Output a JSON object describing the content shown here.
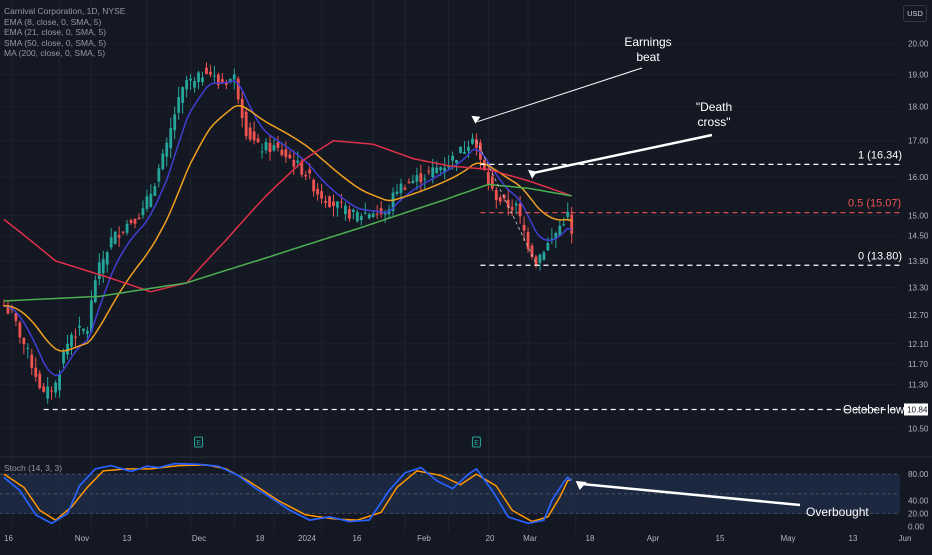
{
  "header": {
    "legend": [
      "Carnival Corporation, 1D, NYSE",
      "EMA (8, close, 0, SMA, 5)",
      "EMA (21, close, 0, SMA, 5)",
      "SMA (50, close, 0, SMA, 5)",
      "MA (200, close, 0, SMA, 5)"
    ],
    "currency": "USD"
  },
  "stoch_legend": "Stoch (14, 3, 3)",
  "colors": {
    "background": "#141823",
    "up": "#26a69a",
    "down": "#ef5350",
    "ema8": "#3f3fd4",
    "ema21": "#f0a020",
    "sma50": "#e0304a",
    "ma200": "#4caf50",
    "stoch_k": "#2962ff",
    "stoch_d": "#ff9800",
    "fib_red": "#ef5350"
  },
  "chart_data": [
    {
      "type": "candlestick",
      "title": "Carnival Corporation, 1D, NYSE",
      "x_ticks": [
        "16",
        "Nov",
        "13",
        "Dec",
        "18",
        "2024",
        "16",
        "Feb",
        "20",
        "Mar",
        "18",
        "Apr",
        "15",
        "May",
        "13",
        "Jun"
      ],
      "y_ticks": [
        20.0,
        19.0,
        18.0,
        17.0,
        16.0,
        15.0,
        14.5,
        13.9,
        13.3,
        12.7,
        12.1,
        11.7,
        11.3,
        10.5
      ],
      "ylim": [
        10.3,
        20.6
      ],
      "y_scale": "log",
      "anchor_closes": [
        [
          "2023-10-12",
          12.9
        ],
        [
          "2023-10-16",
          12.7
        ],
        [
          "2023-10-20",
          11.9
        ],
        [
          "2023-10-26",
          11.1
        ],
        [
          "2023-10-31",
          11.3
        ],
        [
          "2023-11-02",
          11.9
        ],
        [
          "2023-11-06",
          12.3
        ],
        [
          "2023-11-10",
          12.4
        ],
        [
          "2023-11-14",
          13.5
        ],
        [
          "2023-11-20",
          14.4
        ],
        [
          "2023-11-24",
          14.8
        ],
        [
          "2023-11-30",
          15.1
        ],
        [
          "2023-12-04",
          15.6
        ],
        [
          "2023-12-08",
          16.8
        ],
        [
          "2023-12-12",
          17.8
        ],
        [
          "2023-12-15",
          18.8
        ],
        [
          "2023-12-19",
          18.7
        ],
        [
          "2023-12-22",
          19.2
        ],
        [
          "2023-12-27",
          18.7
        ],
        [
          "2024-01-02",
          18.9
        ],
        [
          "2024-01-05",
          17.3
        ],
        [
          "2024-01-10",
          16.8
        ],
        [
          "2024-01-16",
          16.8
        ],
        [
          "2024-01-22",
          16.5
        ],
        [
          "2024-01-26",
          16.1
        ],
        [
          "2024-01-31",
          15.6
        ],
        [
          "2024-02-06",
          15.3
        ],
        [
          "2024-02-13",
          15.0
        ],
        [
          "2024-02-20",
          15.1
        ],
        [
          "2024-02-23",
          15.0
        ],
        [
          "2024-02-28",
          15.7
        ],
        [
          "2024-03-05",
          15.9
        ],
        [
          "2024-03-11",
          16.1
        ],
        [
          "2024-03-18",
          16.4
        ],
        [
          "2024-03-22",
          16.8
        ],
        [
          "2024-03-26",
          17.2
        ],
        [
          "2024-03-28",
          16.4
        ],
        [
          "2024-04-02",
          15.6
        ],
        [
          "2024-04-05",
          15.3
        ],
        [
          "2024-04-10",
          15.2
        ],
        [
          "2024-04-15",
          14.3
        ],
        [
          "2024-04-17",
          13.9
        ],
        [
          "2024-04-19",
          14.2
        ],
        [
          "2024-04-23",
          14.4
        ],
        [
          "2024-04-26",
          14.9
        ],
        [
          "2024-04-29",
          15.0
        ],
        [
          "2024-04-30",
          14.5
        ]
      ],
      "overlays": [
        {
          "name": "EMA 8",
          "color": "#3f3fd4",
          "period": 8
        },
        {
          "name": "EMA 21",
          "color": "#f0a020",
          "period": 21
        },
        {
          "name": "SMA 50",
          "color": "#e0304a",
          "anchors": [
            [
              "2023-10-12",
              14.9
            ],
            [
              "2023-10-31",
              13.9
            ],
            [
              "2023-11-20",
              13.5
            ],
            [
              "2023-12-04",
              13.2
            ],
            [
              "2023-12-15",
              13.4
            ],
            [
              "2023-12-29",
              14.4
            ],
            [
              "2024-01-12",
              15.5
            ],
            [
              "2024-01-26",
              16.5
            ],
            [
              "2024-02-06",
              17.0
            ],
            [
              "2024-02-20",
              16.9
            ],
            [
              "2024-03-05",
              16.5
            ],
            [
              "2024-03-18",
              16.3
            ],
            [
              "2024-04-01",
              16.2
            ],
            [
              "2024-04-15",
              15.9
            ],
            [
              "2024-04-30",
              15.5
            ]
          ]
        },
        {
          "name": "MA 200",
          "color": "#4caf50",
          "anchors": [
            [
              "2023-10-12",
              13.0
            ],
            [
              "2023-11-15",
              13.1
            ],
            [
              "2023-12-15",
              13.4
            ],
            [
              "2024-01-15",
              14.0
            ],
            [
              "2024-02-15",
              14.7
            ],
            [
              "2024-03-15",
              15.4
            ],
            [
              "2024-04-01",
              15.8
            ],
            [
              "2024-04-15",
              15.7
            ],
            [
              "2024-04-30",
              15.5
            ]
          ]
        }
      ],
      "levels": [
        {
          "label": "1 (16.34)",
          "value": 16.34,
          "style": "dashed-white"
        },
        {
          "label": "0.5 (15.07)",
          "value": 15.07,
          "style": "dashed-red"
        },
        {
          "label": "0 (13.80)",
          "value": 13.8,
          "style": "dashed-white"
        },
        {
          "label": "October low",
          "value": 10.84,
          "style": "dashed-white",
          "price_tag": "10.84"
        }
      ],
      "annotations": [
        {
          "text": "Earnings beat",
          "date": "2024-03-27"
        },
        {
          "text": "\"Death cross\"",
          "date": "2024-04-15"
        }
      ],
      "earnings_markers": [
        "2023-12-20",
        "2024-03-27"
      ]
    },
    {
      "type": "line",
      "title": "Stoch (14, 3, 3)",
      "y_ticks": [
        80.0,
        40.0,
        20.0,
        0.0
      ],
      "ylim": [
        -5,
        100
      ],
      "band": [
        20,
        80
      ],
      "annotations": [
        {
          "text": "Overbought",
          "date": "2024-04-30"
        }
      ],
      "k_anchors": [
        [
          "2023-10-12",
          75
        ],
        [
          "2023-10-18",
          55
        ],
        [
          "2023-10-24",
          18
        ],
        [
          "2023-10-30",
          5
        ],
        [
          "2023-11-03",
          20
        ],
        [
          "2023-11-08",
          62
        ],
        [
          "2023-11-14",
          88
        ],
        [
          "2023-11-20",
          93
        ],
        [
          "2023-11-27",
          84
        ],
        [
          "2023-12-01",
          92
        ],
        [
          "2023-12-06",
          90
        ],
        [
          "2023-12-12",
          96
        ],
        [
          "2023-12-20",
          95
        ],
        [
          "2023-12-27",
          92
        ],
        [
          "2024-01-03",
          78
        ],
        [
          "2024-01-09",
          60
        ],
        [
          "2024-01-15",
          45
        ],
        [
          "2024-01-22",
          25
        ],
        [
          "2024-01-29",
          10
        ],
        [
          "2024-02-05",
          15
        ],
        [
          "2024-02-12",
          8
        ],
        [
          "2024-02-19",
          10
        ],
        [
          "2024-02-26",
          55
        ],
        [
          "2024-03-01",
          82
        ],
        [
          "2024-03-07",
          90
        ],
        [
          "2024-03-13",
          70
        ],
        [
          "2024-03-19",
          58
        ],
        [
          "2024-03-25",
          80
        ],
        [
          "2024-03-27",
          88
        ],
        [
          "2024-04-02",
          55
        ],
        [
          "2024-04-08",
          15
        ],
        [
          "2024-04-15",
          5
        ],
        [
          "2024-04-19",
          10
        ],
        [
          "2024-04-23",
          40
        ],
        [
          "2024-04-26",
          68
        ],
        [
          "2024-04-29",
          75
        ],
        [
          "2024-04-30",
          70
        ]
      ],
      "d_anchors": [
        [
          "2023-10-12",
          80
        ],
        [
          "2023-10-19",
          60
        ],
        [
          "2023-10-25",
          25
        ],
        [
          "2023-10-31",
          10
        ],
        [
          "2023-11-06",
          30
        ],
        [
          "2023-11-10",
          60
        ],
        [
          "2023-11-16",
          85
        ],
        [
          "2023-11-24",
          88
        ],
        [
          "2023-12-04",
          88
        ],
        [
          "2023-12-13",
          93
        ],
        [
          "2023-12-22",
          94
        ],
        [
          "2023-12-29",
          88
        ],
        [
          "2024-01-08",
          68
        ],
        [
          "2024-01-17",
          40
        ],
        [
          "2024-01-26",
          18
        ],
        [
          "2024-02-06",
          12
        ],
        [
          "2024-02-14",
          10
        ],
        [
          "2024-02-22",
          22
        ],
        [
          "2024-02-28",
          60
        ],
        [
          "2024-03-06",
          85
        ],
        [
          "2024-03-14",
          78
        ],
        [
          "2024-03-21",
          64
        ],
        [
          "2024-03-27",
          80
        ],
        [
          "2024-04-03",
          62
        ],
        [
          "2024-04-09",
          25
        ],
        [
          "2024-04-16",
          8
        ],
        [
          "2024-04-22",
          15
        ],
        [
          "2024-04-25",
          45
        ],
        [
          "2024-04-29",
          70
        ],
        [
          "2024-04-30",
          72
        ]
      ]
    }
  ]
}
